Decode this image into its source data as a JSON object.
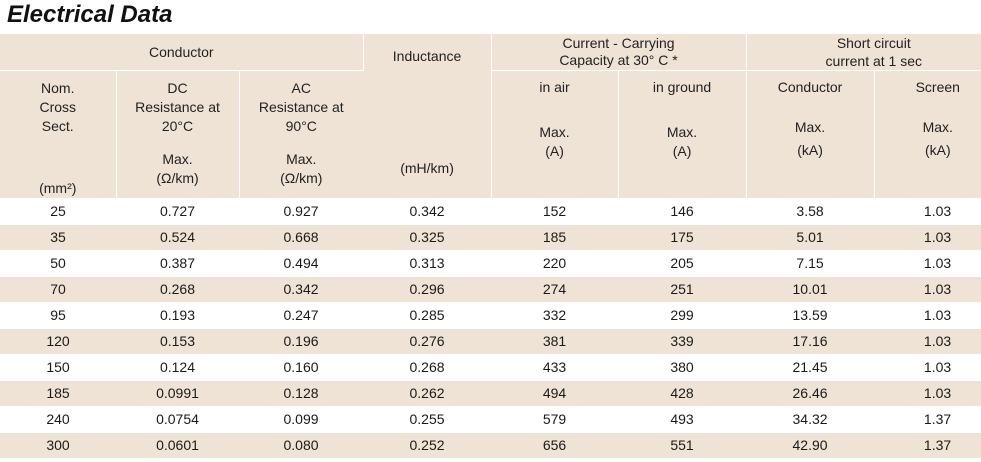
{
  "title": "Electrical Data",
  "header": {
    "conductor_group": "Conductor",
    "nom_cross": "Nom. Cross Sect.",
    "nom_unit": "(mm²)",
    "dc_resistance": "DC Resistance at 20°C",
    "dc_max": "Max.",
    "dc_unit": "(Ω/km)",
    "ac_resistance": "AC Resistance at 90°C",
    "ac_max": "Max.",
    "ac_unit": "(Ω/km)",
    "inductance": "Inductance",
    "inductance_unit": "(mH/km)",
    "current_group": "Current - Carrying Capacity at 30° C *",
    "in_air": "in air",
    "in_air_max": "Max.",
    "in_air_unit": "(A)",
    "in_ground": "in ground",
    "in_ground_max": "Max.",
    "in_ground_unit": "(A)",
    "short_circuit_group": "Short circuit current at 1 sec",
    "sc_conductor": "Conductor",
    "sc_conductor_max": "Max.",
    "sc_conductor_unit": "(kA)",
    "sc_screen": "Screen",
    "sc_screen_max": "Max.",
    "sc_screen_unit": "(kA)"
  },
  "rows": [
    [
      "25",
      "0.727",
      "0.927",
      "0.342",
      "152",
      "146",
      "3.58",
      "1.03"
    ],
    [
      "35",
      "0.524",
      "0.668",
      "0.325",
      "185",
      "175",
      "5.01",
      "1.03"
    ],
    [
      "50",
      "0.387",
      "0.494",
      "0.313",
      "220",
      "205",
      "7.15",
      "1.03"
    ],
    [
      "70",
      "0.268",
      "0.342",
      "0.296",
      "274",
      "251",
      "10.01",
      "1.03"
    ],
    [
      "95",
      "0.193",
      "0.247",
      "0.285",
      "332",
      "299",
      "13.59",
      "1.03"
    ],
    [
      "120",
      "0.153",
      "0.196",
      "0.276",
      "381",
      "339",
      "17.16",
      "1.03"
    ],
    [
      "150",
      "0.124",
      "0.160",
      "0.268",
      "433",
      "380",
      "21.45",
      "1.03"
    ],
    [
      "185",
      "0.0991",
      "0.128",
      "0.262",
      "494",
      "428",
      "26.46",
      "1.03"
    ],
    [
      "240",
      "0.0754",
      "0.099",
      "0.255",
      "579",
      "493",
      "34.32",
      "1.37"
    ],
    [
      "300",
      "0.0601",
      "0.080",
      "0.252",
      "656",
      "551",
      "42.90",
      "1.37"
    ]
  ]
}
